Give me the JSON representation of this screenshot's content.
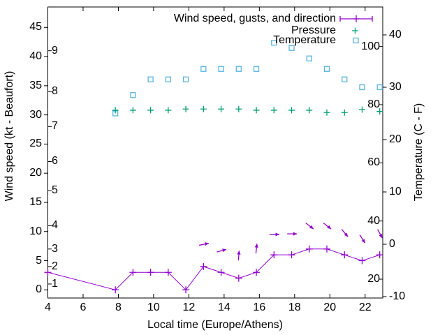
{
  "colors": {
    "wind": "#9400d3",
    "pressure": "#009e73",
    "temperature": "#56b4e9",
    "axis": "#000000",
    "background": "#ffffff"
  },
  "legend": {
    "items": [
      {
        "id": "wind",
        "label": "Wind speed, gusts, and direction"
      },
      {
        "id": "pressure",
        "label": "Pressure"
      },
      {
        "id": "temperature",
        "label": "Temperature"
      }
    ]
  },
  "axes": {
    "x": {
      "label": "Local time (Europe/Athens)",
      "range": [
        4,
        23
      ],
      "ticks": [
        4,
        6,
        8,
        10,
        12,
        14,
        16,
        18,
        20,
        22
      ]
    },
    "y_left": {
      "label": "Wind speed (kt - Beaufort)",
      "kt": {
        "range": [
          0,
          45
        ],
        "ticks": [
          0,
          5,
          10,
          15,
          20,
          25,
          30,
          35,
          40,
          45
        ]
      },
      "beaufort": {
        "ticks": [
          1,
          2,
          3,
          4,
          5,
          6,
          7,
          8,
          9
        ],
        "kt_positions": [
          1,
          4,
          7,
          11,
          17,
          22,
          28,
          34,
          41
        ]
      }
    },
    "y_right": {
      "label": "Temperature (C - F)",
      "celsius": {
        "range": [
          -10,
          45
        ],
        "ticks": [
          -10,
          0,
          10,
          20,
          30,
          40
        ]
      },
      "fahrenheit": {
        "ticks": [
          20,
          40,
          60,
          80,
          100
        ]
      }
    }
  },
  "chart_data": {
    "type": "line",
    "x_axis": "local time (hours)",
    "series": [
      {
        "name": "Wind speed (kt)",
        "color_key": "wind",
        "marker": "plus",
        "line": true,
        "x": [
          4,
          7.83,
          8.83,
          9.83,
          10.83,
          11.83,
          12.83,
          13.83,
          14.83,
          15.83,
          16.83,
          17.83,
          18.83,
          19.83,
          20.83,
          21.83,
          22.83
        ],
        "y": [
          3,
          0,
          3,
          3,
          3,
          0,
          4,
          3,
          2,
          3,
          6,
          6,
          7,
          7,
          6,
          5,
          6
        ]
      },
      {
        "name": "Pressure",
        "color_key": "pressure",
        "marker": "plus",
        "line": false,
        "axis_note": "no visible pressure scale; values given in left-axis units as plotted",
        "x": [
          7.83,
          8.83,
          9.83,
          10.83,
          11.83,
          12.83,
          13.83,
          14.83,
          15.83,
          16.83,
          17.83,
          18.83,
          19.83,
          20.83,
          21.83,
          22.83
        ],
        "y": [
          30.8,
          30.8,
          30.8,
          30.8,
          31.0,
          31.0,
          31.0,
          31.0,
          30.8,
          30.8,
          30.8,
          30.8,
          30.4,
          30.4,
          30.9,
          30.6
        ]
      },
      {
        "name": "Temperature (C)",
        "color_key": "temperature",
        "marker": "open-square",
        "line": false,
        "x": [
          7.83,
          8.83,
          9.83,
          10.83,
          11.83,
          12.83,
          13.83,
          14.83,
          15.83,
          16.83,
          17.83,
          18.83,
          19.83,
          20.83,
          21.83,
          22.83
        ],
        "y": [
          25,
          28.5,
          31.5,
          31.5,
          31.5,
          33.5,
          33.5,
          33.5,
          33.5,
          38.5,
          37.5,
          35.5,
          33.5,
          31.5,
          30,
          30
        ]
      }
    ],
    "wind_direction_arrows": {
      "color_key": "wind",
      "x": [
        12.83,
        13.83,
        14.83,
        15.83,
        16.83,
        17.83,
        18.83,
        19.83,
        20.83,
        21.83,
        22.83
      ],
      "y_left_axis": [
        7.8,
        6.7,
        5.8,
        7.0,
        9.5,
        9.6,
        11.0,
        11.0,
        9.8,
        8.8,
        9.7
      ],
      "angle_deg_clockwise_from_east": [
        -12,
        -15,
        -86,
        -84,
        0,
        0,
        38,
        38,
        50,
        57,
        62
      ]
    }
  }
}
